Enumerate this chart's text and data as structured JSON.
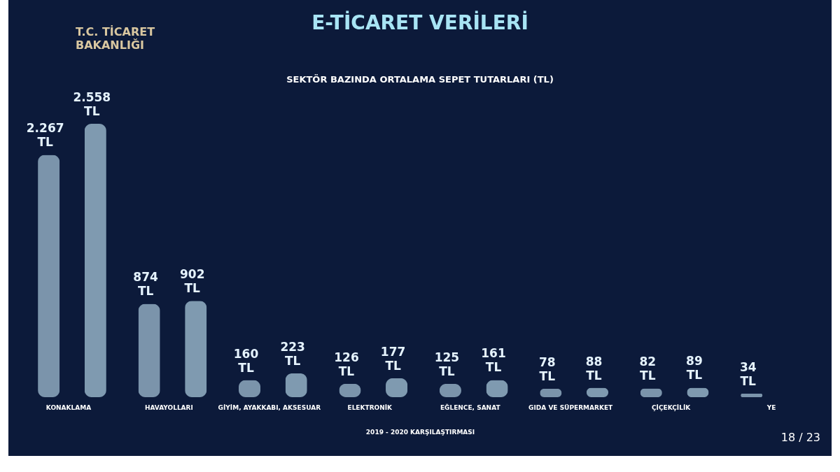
{
  "chart_data": {
    "type": "bar",
    "title": "E-TİCARET VERİLERİ",
    "subtitle": "SEKTÖR BAZINDA ORTALAMA SEPET TUTARLARI (TL)",
    "xlabel": "2019 - 2020 KARŞILAŞTIRMASI",
    "categories": [
      "KONAKLAMA",
      "HAVAYOLLARI",
      "GİYİM, AYAKKABI, AKSESUAR",
      "ELEKTRONİK",
      "EĞLENCE, SANAT",
      "GIDA VE SÜPERMARKET",
      "ÇİÇEKÇİLİK",
      "YE"
    ],
    "series": [
      {
        "color": "#7b94ab",
        "values": [
          2267,
          874,
          160,
          126,
          125,
          78,
          82,
          34
        ],
        "value_labels": [
          "2.267 TL",
          "874 TL",
          "160 TL",
          "126 TL",
          "125 TL",
          "78 TL",
          "82 TL",
          "34 TL"
        ]
      },
      {
        "color": "#7f9ab0",
        "values": [
          2558,
          902,
          223,
          177,
          161,
          88,
          89,
          null
        ],
        "value_labels": [
          "2.558 TL",
          "902 TL",
          "223 TL",
          "177 TL",
          "161 TL",
          "88 TL",
          "89 TL",
          null
        ]
      }
    ],
    "annotations": [
      "T.C. TİCARET BAKANLIĞI",
      "18 / 23"
    ]
  }
}
